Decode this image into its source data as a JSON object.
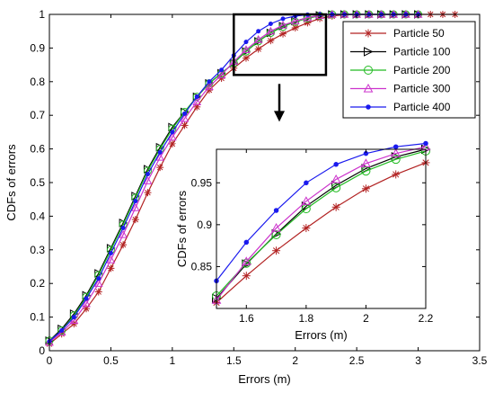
{
  "chart_data": [
    {
      "type": "line",
      "xlabel": "Errors (m)",
      "ylabel": "CDFs of errors",
      "xlim": [
        0,
        3.5
      ],
      "ylim": [
        0,
        1
      ],
      "xticks": [
        0,
        0.5,
        1,
        1.5,
        2,
        2.5,
        3,
        3.5
      ],
      "xtick_labels": [
        "0",
        "0.5",
        "1",
        "1.5",
        "2",
        "2.5",
        "3",
        "3.5"
      ],
      "yticks": [
        0,
        0.1,
        0.2,
        0.3,
        0.4,
        0.5,
        0.6,
        0.7,
        0.8,
        0.9,
        1
      ],
      "ytick_labels": [
        "0",
        "0.1",
        "0.2",
        "0.3",
        "0.4",
        "0.5",
        "0.6",
        "0.7",
        "0.8",
        "0.9",
        "1"
      ],
      "legend_position": "top-right",
      "zoom_box": {
        "x": [
          1.5,
          2.25
        ],
        "y": [
          0.82,
          1.0
        ]
      },
      "series": [
        {
          "name": "Particle 50",
          "color": "#b22222",
          "marker": "asterisk",
          "x": [
            0,
            0.1,
            0.2,
            0.3,
            0.4,
            0.5,
            0.6,
            0.7,
            0.8,
            0.9,
            1.0,
            1.1,
            1.2,
            1.3,
            1.4,
            1.5,
            1.6,
            1.7,
            1.8,
            1.9,
            2.0,
            2.1,
            2.2,
            2.3,
            2.4,
            2.5,
            2.6,
            2.7,
            2.8,
            2.9,
            3.0,
            3.1,
            3.2,
            3.3
          ],
          "y": [
            0.02,
            0.05,
            0.08,
            0.125,
            0.175,
            0.245,
            0.315,
            0.39,
            0.47,
            0.545,
            0.615,
            0.67,
            0.725,
            0.775,
            0.81,
            0.84,
            0.87,
            0.897,
            0.922,
            0.942,
            0.96,
            0.975,
            0.988,
            0.995,
            0.999,
            1,
            1,
            1,
            1,
            1,
            1,
            1,
            1,
            1
          ]
        },
        {
          "name": "Particle 100",
          "color": "#000000",
          "marker": "triangle-right",
          "x": [
            0,
            0.1,
            0.2,
            0.3,
            0.4,
            0.5,
            0.6,
            0.7,
            0.8,
            0.9,
            1.0,
            1.1,
            1.2,
            1.3,
            1.4,
            1.5,
            1.6,
            1.7,
            1.8,
            1.9,
            2.0,
            2.1,
            2.2,
            2.3,
            2.4,
            2.5,
            2.6,
            2.7,
            2.8,
            2.9,
            3.0
          ],
          "y": [
            0.03,
            0.065,
            0.11,
            0.165,
            0.23,
            0.305,
            0.38,
            0.46,
            0.54,
            0.605,
            0.665,
            0.71,
            0.755,
            0.795,
            0.825,
            0.855,
            0.89,
            0.92,
            0.945,
            0.965,
            0.98,
            0.99,
            0.997,
            1,
            1,
            1,
            1,
            1,
            1,
            1,
            1
          ]
        },
        {
          "name": "Particle 200",
          "color": "#22bb22",
          "marker": "circle",
          "x": [
            0,
            0.1,
            0.2,
            0.3,
            0.4,
            0.5,
            0.6,
            0.7,
            0.8,
            0.9,
            1.0,
            1.1,
            1.2,
            1.3,
            1.4,
            1.5,
            1.6,
            1.7,
            1.8,
            1.9,
            2.0,
            2.1,
            2.2,
            2.3,
            2.4,
            2.5,
            2.6,
            2.7,
            2.8,
            2.9,
            3.0
          ],
          "y": [
            0.03,
            0.06,
            0.105,
            0.16,
            0.225,
            0.3,
            0.375,
            0.455,
            0.535,
            0.6,
            0.66,
            0.71,
            0.755,
            0.795,
            0.825,
            0.855,
            0.89,
            0.92,
            0.945,
            0.963,
            0.978,
            0.988,
            0.996,
            1,
            1,
            1,
            1,
            1,
            1,
            1,
            1
          ]
        },
        {
          "name": "Particle 300",
          "color": "#cc33cc",
          "marker": "triangle-up",
          "x": [
            0,
            0.1,
            0.2,
            0.3,
            0.4,
            0.5,
            0.6,
            0.7,
            0.8,
            0.9,
            1.0,
            1.1,
            1.2,
            1.3,
            1.4,
            1.5,
            1.6,
            1.7,
            1.8,
            1.9,
            2.0,
            2.1,
            2.2,
            2.3,
            2.4,
            2.5,
            2.6,
            2.7,
            2.8,
            2.9,
            3.0
          ],
          "y": [
            0.025,
            0.055,
            0.09,
            0.14,
            0.2,
            0.27,
            0.345,
            0.425,
            0.505,
            0.575,
            0.635,
            0.69,
            0.74,
            0.785,
            0.82,
            0.86,
            0.895,
            0.925,
            0.95,
            0.968,
            0.98,
            0.99,
            0.997,
            1,
            1,
            1,
            1,
            1,
            1,
            1,
            1
          ]
        },
        {
          "name": "Particle 400",
          "color": "#1a1aee",
          "marker": "dot",
          "x": [
            0,
            0.1,
            0.2,
            0.3,
            0.4,
            0.5,
            0.6,
            0.7,
            0.8,
            0.9,
            1.0,
            1.1,
            1.2,
            1.3,
            1.4,
            1.5,
            1.6,
            1.7,
            1.8,
            1.9,
            2.0,
            2.1,
            2.2,
            2.3,
            2.4,
            2.5,
            2.6,
            2.7,
            2.8,
            2.9,
            3.0
          ],
          "y": [
            0.028,
            0.06,
            0.1,
            0.155,
            0.215,
            0.29,
            0.365,
            0.445,
            0.525,
            0.59,
            0.65,
            0.705,
            0.755,
            0.8,
            0.835,
            0.878,
            0.918,
            0.95,
            0.972,
            0.987,
            0.995,
            0.999,
            1,
            1,
            1,
            1,
            1,
            1,
            1,
            1,
            1
          ]
        }
      ]
    },
    {
      "type": "line",
      "xlabel": "Errors (m)",
      "ylabel": "CDFs of errors",
      "xlim": [
        1.5,
        2.2
      ],
      "ylim": [
        0.8,
        0.99
      ],
      "xticks": [
        1.6,
        1.8,
        2.0,
        2.2
      ],
      "xtick_labels": [
        "1.6",
        "1.8",
        "2",
        "2.2"
      ],
      "yticks": [
        0.85,
        0.9,
        0.95
      ],
      "ytick_labels": [
        "0.85",
        "0.9",
        "0.95"
      ],
      "series": [
        {
          "name": "Particle 50",
          "color": "#b22222",
          "marker": "asterisk",
          "x": [
            1.5,
            1.6,
            1.7,
            1.8,
            1.9,
            2.0,
            2.1,
            2.2
          ],
          "y": [
            0.807,
            0.839,
            0.869,
            0.896,
            0.921,
            0.943,
            0.96,
            0.974
          ]
        },
        {
          "name": "Particle 100",
          "color": "#000000",
          "marker": "triangle-right",
          "x": [
            1.5,
            1.6,
            1.7,
            1.8,
            1.9,
            2.0,
            2.1,
            2.2
          ],
          "y": [
            0.812,
            0.853,
            0.889,
            0.922,
            0.947,
            0.967,
            0.981,
            0.99
          ]
        },
        {
          "name": "Particle 200",
          "color": "#22bb22",
          "marker": "circle",
          "x": [
            1.5,
            1.6,
            1.7,
            1.8,
            1.9,
            2.0,
            2.1,
            2.2
          ],
          "y": [
            0.815,
            0.854,
            0.888,
            0.919,
            0.944,
            0.964,
            0.978,
            0.988
          ]
        },
        {
          "name": "Particle 300",
          "color": "#cc33cc",
          "marker": "triangle-up",
          "x": [
            1.5,
            1.6,
            1.7,
            1.8,
            1.9,
            2.0,
            2.1,
            2.2
          ],
          "y": [
            0.81,
            0.856,
            0.896,
            0.928,
            0.954,
            0.973,
            0.985,
            0.993
          ]
        },
        {
          "name": "Particle 400",
          "color": "#1a1aee",
          "marker": "dot",
          "x": [
            1.5,
            1.6,
            1.7,
            1.8,
            1.9,
            2.0,
            2.1,
            2.2
          ],
          "y": [
            0.833,
            0.879,
            0.917,
            0.95,
            0.972,
            0.985,
            0.993,
            0.997
          ]
        }
      ]
    }
  ]
}
